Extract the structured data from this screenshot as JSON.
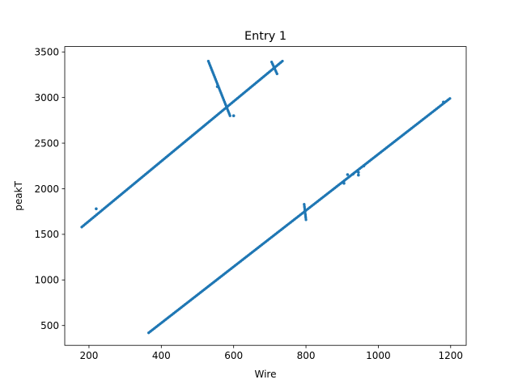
{
  "chart_data": {
    "type": "scatter",
    "title": "Entry 1",
    "xlabel": "Wire",
    "ylabel": "peakT",
    "xlim": [
      133,
      1243
    ],
    "ylim": [
      283,
      3559
    ],
    "xticks": [
      200,
      400,
      600,
      800,
      1000,
      1200
    ],
    "yticks": [
      500,
      1000,
      1500,
      2000,
      2500,
      3000,
      3500
    ],
    "grid": false,
    "legend": "none",
    "marker_color": "#1f77b4",
    "series": [
      {
        "segments": [
          {
            "x_start": 180,
            "y_start": 1580,
            "x_end": 735,
            "y_end": 3400
          },
          {
            "x_start": 530,
            "y_start": 3400,
            "x_end": 590,
            "y_end": 2800
          },
          {
            "x_start": 705,
            "y_start": 3390,
            "x_end": 720,
            "y_end": 3260
          },
          {
            "x_start": 365,
            "y_start": 420,
            "x_end": 1198,
            "y_end": 2990
          },
          {
            "x_start": 795,
            "y_start": 1830,
            "x_end": 800,
            "y_end": 1660
          }
        ],
        "points": [
          {
            "x": 220,
            "y": 1780
          },
          {
            "x": 600,
            "y": 2800
          },
          {
            "x": 555,
            "y": 3120
          },
          {
            "x": 905,
            "y": 2060
          },
          {
            "x": 915,
            "y": 2155
          },
          {
            "x": 930,
            "y": 2160
          },
          {
            "x": 945,
            "y": 2150
          },
          {
            "x": 945,
            "y": 2180
          },
          {
            "x": 960,
            "y": 2250
          },
          {
            "x": 1180,
            "y": 2950
          }
        ]
      }
    ]
  }
}
